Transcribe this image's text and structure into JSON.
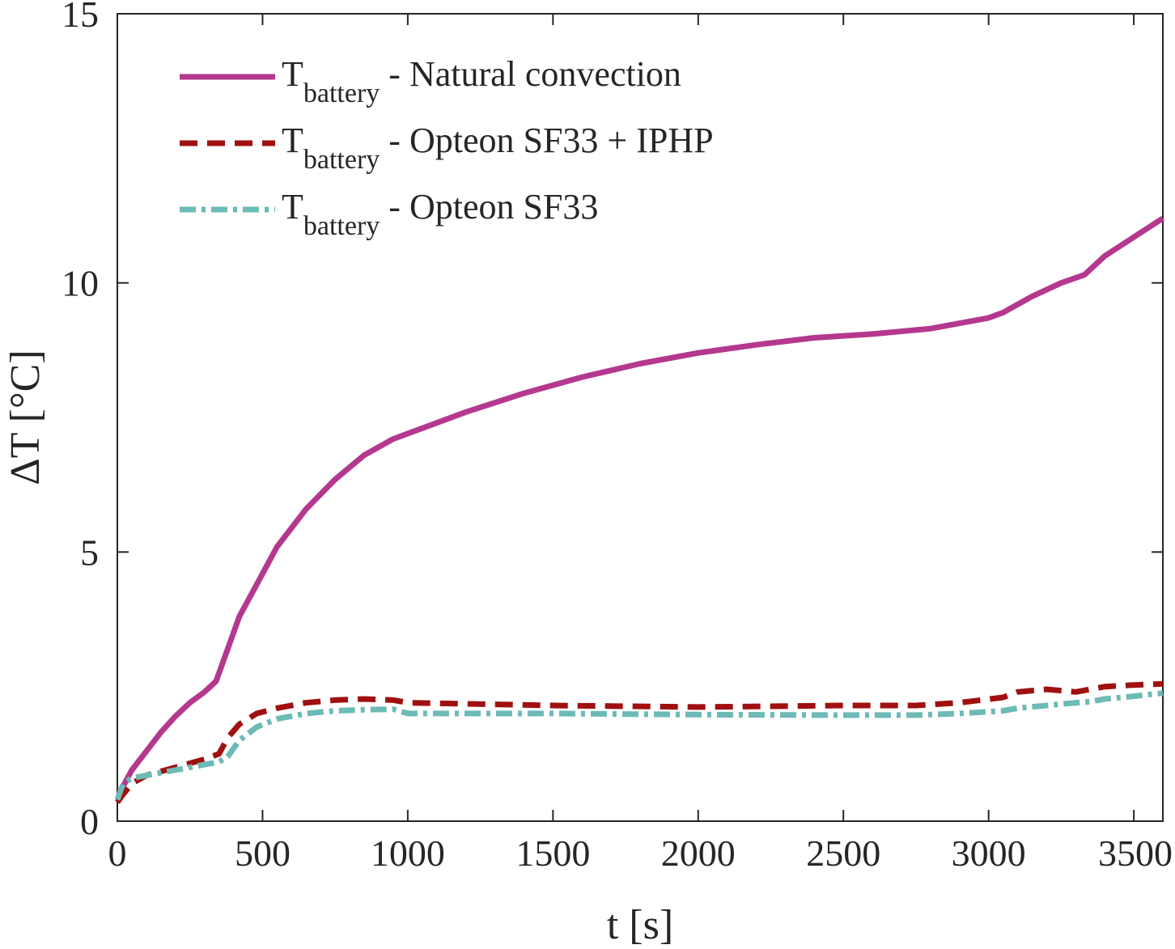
{
  "chart_data": {
    "type": "line",
    "title": "",
    "xlabel": "t [s]",
    "ylabel": "ΔT [°C]",
    "xlim": [
      0,
      3600
    ],
    "ylim": [
      0,
      15
    ],
    "xticks": [
      0,
      500,
      1000,
      1500,
      2000,
      2500,
      3000,
      3500
    ],
    "yticks": [
      0,
      5,
      10,
      15
    ],
    "grid": false,
    "legend_position": "top-left",
    "series": [
      {
        "name": "Natural convection",
        "legend_main": "T",
        "legend_sub": "battery",
        "legend_suffix": " - Natural convection",
        "color": "#b5388f",
        "style": "solid",
        "x": [
          0,
          25,
          50,
          100,
          150,
          200,
          250,
          300,
          340,
          380,
          420,
          480,
          550,
          650,
          750,
          850,
          950,
          1050,
          1200,
          1400,
          1600,
          1800,
          2000,
          2200,
          2400,
          2600,
          2800,
          3000,
          3050,
          3150,
          3250,
          3330,
          3400,
          3500,
          3600
        ],
        "y": [
          0.4,
          0.7,
          0.95,
          1.3,
          1.65,
          1.95,
          2.2,
          2.4,
          2.6,
          3.2,
          3.8,
          4.4,
          5.1,
          5.8,
          6.35,
          6.8,
          7.1,
          7.3,
          7.6,
          7.95,
          8.25,
          8.5,
          8.7,
          8.85,
          8.98,
          9.05,
          9.15,
          9.35,
          9.45,
          9.75,
          10.0,
          10.15,
          10.5,
          10.85,
          11.2
        ]
      },
      {
        "name": "Opteon SF33 + IPHP",
        "legend_main": "T",
        "legend_sub": "battery",
        "legend_suffix": " - Opteon SF33 + IPHP",
        "color": "#a01010",
        "style": "dashed",
        "x": [
          0,
          20,
          50,
          100,
          200,
          300,
          350,
          380,
          420,
          480,
          550,
          650,
          750,
          850,
          950,
          1000,
          1500,
          2000,
          2500,
          2750,
          2900,
          3050,
          3100,
          3200,
          3300,
          3350,
          3400,
          3500,
          3600
        ],
        "y": [
          0.35,
          0.5,
          0.7,
          0.85,
          1.0,
          1.15,
          1.25,
          1.55,
          1.8,
          2.0,
          2.1,
          2.2,
          2.25,
          2.27,
          2.25,
          2.2,
          2.15,
          2.12,
          2.15,
          2.15,
          2.2,
          2.3,
          2.4,
          2.45,
          2.4,
          2.45,
          2.5,
          2.53,
          2.55
        ]
      },
      {
        "name": "Opteon SF33",
        "legend_main": "T",
        "legend_sub": "battery",
        "legend_suffix": " - Opteon SF33",
        "color": "#6dbab6",
        "style": "dashdot",
        "x": [
          0,
          20,
          50,
          100,
          200,
          300,
          350,
          380,
          420,
          480,
          550,
          650,
          750,
          850,
          950,
          1000,
          1500,
          2000,
          2500,
          2750,
          2900,
          3050,
          3100,
          3200,
          3300,
          3350,
          3400,
          3500,
          3600
        ],
        "y": [
          0.4,
          0.7,
          0.8,
          0.85,
          0.95,
          1.05,
          1.1,
          1.2,
          1.5,
          1.75,
          1.9,
          2.0,
          2.05,
          2.07,
          2.08,
          2.0,
          2.0,
          1.98,
          1.97,
          1.97,
          2.0,
          2.05,
          2.1,
          2.15,
          2.2,
          2.22,
          2.27,
          2.32,
          2.38
        ]
      }
    ]
  }
}
